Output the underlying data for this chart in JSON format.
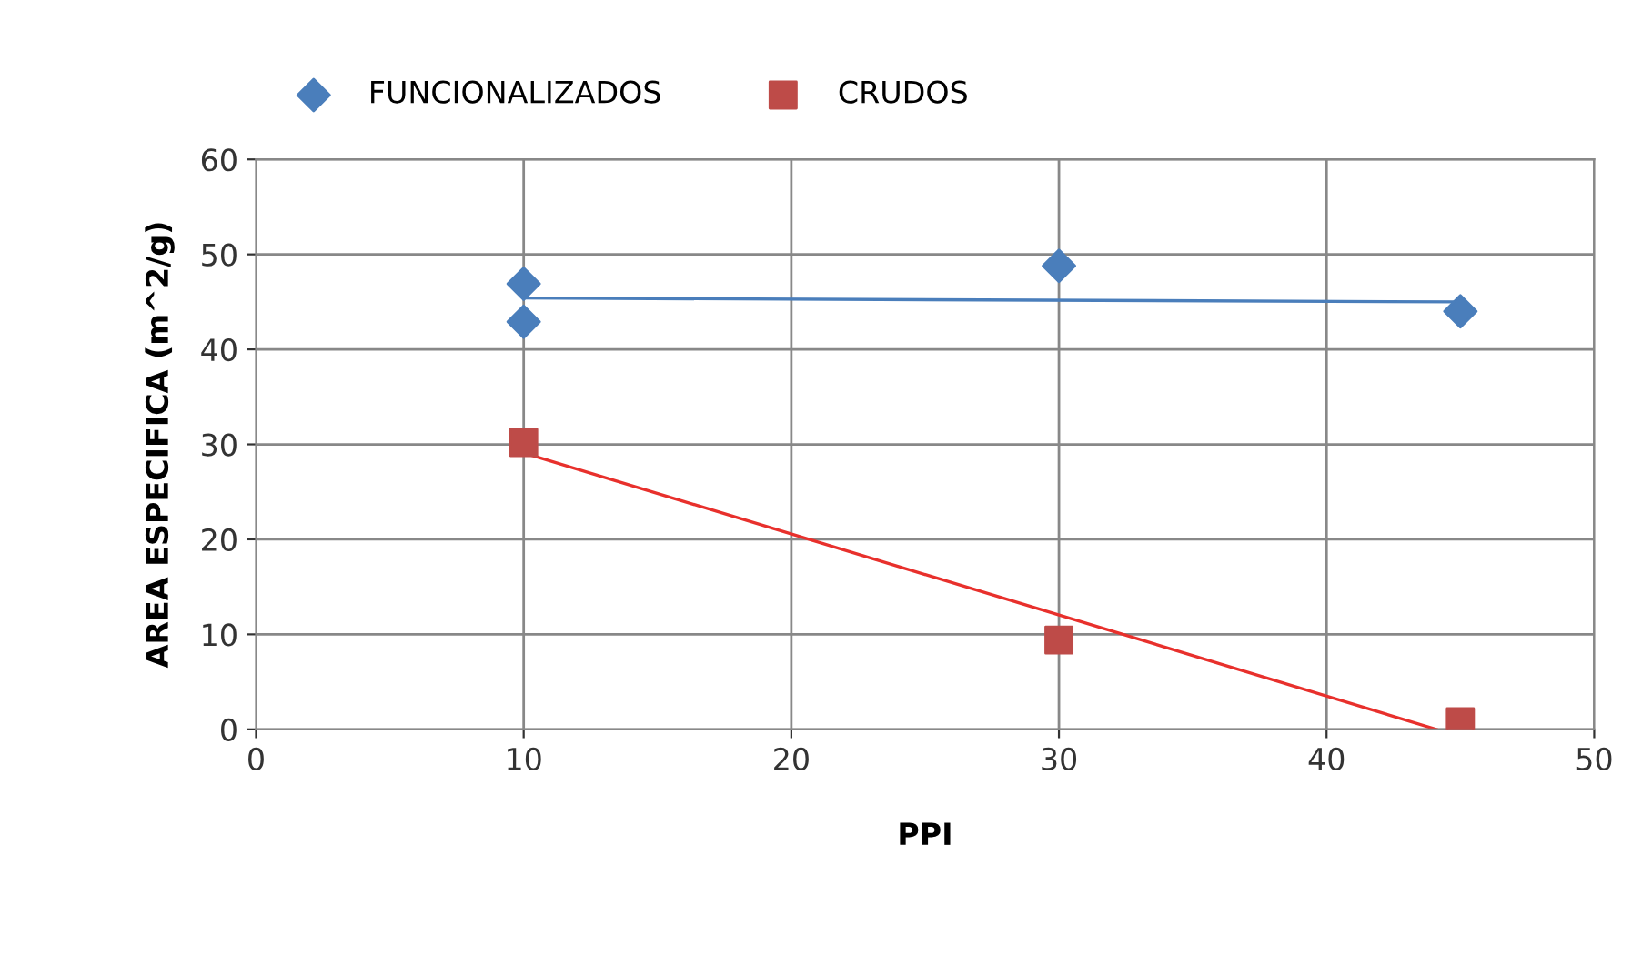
{
  "chart_data": {
    "type": "scatter",
    "xlabel": "PPI",
    "ylabel": "AREA ESPECIFICA (m^2/g)",
    "xlim": [
      0,
      50
    ],
    "ylim": [
      0,
      60
    ],
    "xticks": [
      0,
      10,
      20,
      30,
      40,
      50
    ],
    "yticks": [
      0,
      10,
      20,
      30,
      40,
      50,
      60
    ],
    "grid": true,
    "legend": "top",
    "series": [
      {
        "name": "FUNCIONALIZADOS",
        "marker": "diamond",
        "color": "#4a7ebb",
        "x": [
          10,
          10,
          30,
          45
        ],
        "values": [
          46.9,
          42.9,
          48.8,
          44.0
        ]
      },
      {
        "name": "CRUDOS",
        "marker": "square",
        "color": "#be4b48",
        "x": [
          10,
          30,
          45
        ],
        "values": [
          30.2,
          9.4,
          0.8
        ]
      },
      {
        "type": "line",
        "color": "#4a7ebb",
        "x": [
          10,
          45
        ],
        "values": [
          45.4,
          45.0
        ]
      },
      {
        "type": "line",
        "color": "#e8302c",
        "x": [
          10,
          44.1
        ],
        "values": [
          29.1,
          0
        ]
      }
    ]
  }
}
